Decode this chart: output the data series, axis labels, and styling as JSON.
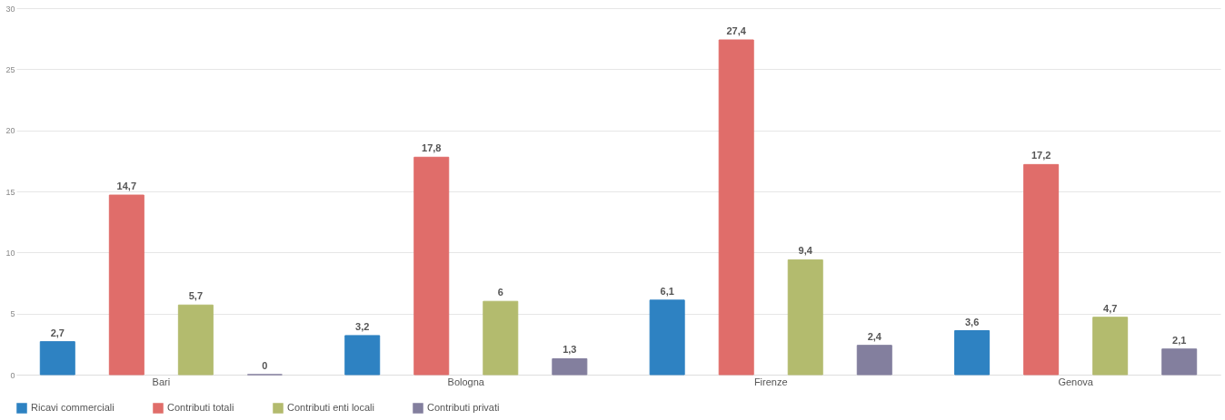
{
  "chart_data": {
    "type": "bar",
    "categories": [
      "Bari",
      "Bologna",
      "Firenze",
      "Genova"
    ],
    "series": [
      {
        "name": "Ricavi commerciali",
        "color": "#2e82c2",
        "values": [
          2.7,
          3.2,
          6.1,
          3.6
        ],
        "value_labels": [
          "2,7",
          "3,2",
          "6,1",
          "3,6"
        ]
      },
      {
        "name": "Contributi totali",
        "color": "#e06d6a",
        "values": [
          14.7,
          17.8,
          27.4,
          17.2
        ],
        "value_labels": [
          "14,7",
          "17,8",
          "27,4",
          "17,2"
        ]
      },
      {
        "name": "Contributi enti locali",
        "color": "#b3bb6e",
        "values": [
          5.7,
          6,
          9.4,
          4.7
        ],
        "value_labels": [
          "5,7",
          "6",
          "9,4",
          "4,7"
        ]
      },
      {
        "name": "Contributi privati",
        "color": "#837f9e",
        "values": [
          0,
          1.3,
          2.4,
          2.1
        ],
        "value_labels": [
          "0",
          "1,3",
          "2,4",
          "2,1"
        ]
      }
    ],
    "ylim": [
      0,
      30
    ],
    "yticks": [
      0,
      5,
      10,
      15,
      20,
      25,
      30
    ],
    "grid": "y",
    "legend": "bottom"
  }
}
